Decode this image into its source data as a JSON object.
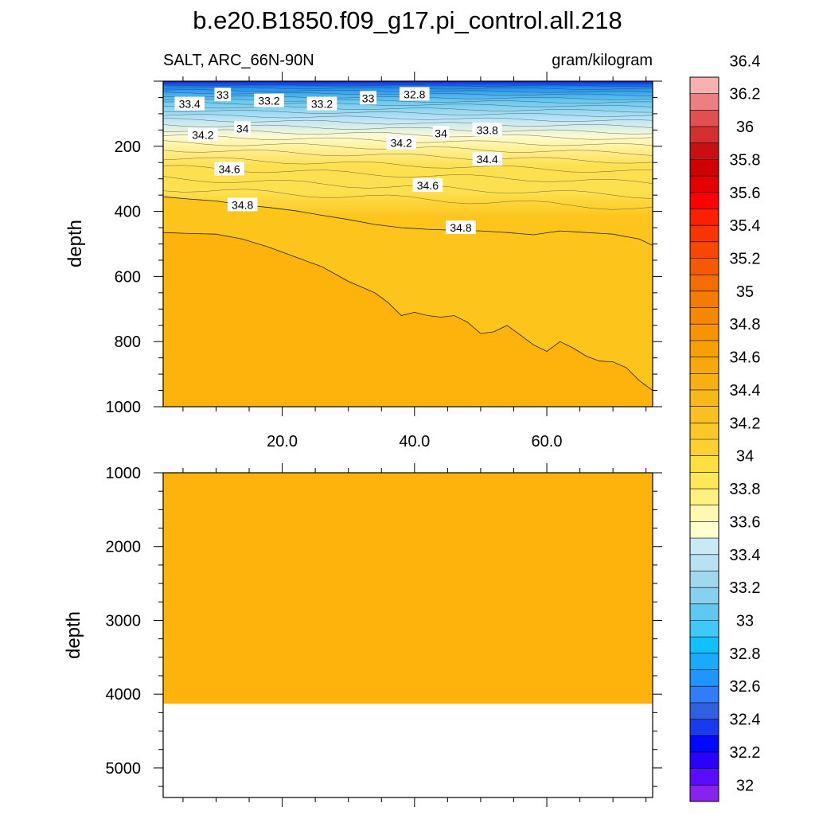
{
  "chart_data": {
    "type": "contour",
    "title": "b.e20.B1850.f09_g17.pi_control.all.218",
    "left_subtitle": "SALT, ARC_66N-90N",
    "right_subtitle": "gram/kilogram",
    "xlim": [
      2,
      76
    ],
    "x_tick_labels": [
      {
        "value": 20,
        "label": "20.0"
      },
      {
        "value": 40,
        "label": "40.0"
      },
      {
        "value": 60,
        "label": "60.0"
      }
    ],
    "panels": [
      {
        "name": "upper",
        "ylabel": "depth",
        "ylim": [
          0,
          1000
        ],
        "y_ticks": [
          200,
          400,
          600,
          800,
          1000
        ],
        "y_tick_labels": [
          "200",
          "400",
          "600",
          "800",
          "1000"
        ],
        "contour_labels": [
          {
            "text": "33",
            "x": 11,
            "y": 42
          },
          {
            "text": "33.4",
            "x": 6,
            "y": 70
          },
          {
            "text": "33.2",
            "x": 18,
            "y": 60
          },
          {
            "text": "33.2",
            "x": 26,
            "y": 70
          },
          {
            "text": "33",
            "x": 33,
            "y": 52
          },
          {
            "text": "32.8",
            "x": 40,
            "y": 40
          },
          {
            "text": "34",
            "x": 14,
            "y": 145
          },
          {
            "text": "34.2",
            "x": 8,
            "y": 165
          },
          {
            "text": "34",
            "x": 44,
            "y": 160
          },
          {
            "text": "33.8",
            "x": 51,
            "y": 150
          },
          {
            "text": "34.2",
            "x": 38,
            "y": 190
          },
          {
            "text": "34.4",
            "x": 51,
            "y": 240
          },
          {
            "text": "34.6",
            "x": 12,
            "y": 270
          },
          {
            "text": "34.6",
            "x": 42,
            "y": 320
          },
          {
            "text": "34.8",
            "x": 14,
            "y": 380
          },
          {
            "text": "34.8",
            "x": 47,
            "y": 450
          }
        ],
        "contour_348_depth": {
          "x": [
            2,
            6,
            10,
            14,
            18,
            22,
            26,
            30,
            34,
            38,
            42,
            46,
            50,
            54,
            58,
            62,
            66,
            70,
            74,
            76
          ],
          "depth": [
            355,
            362,
            368,
            380,
            388,
            398,
            412,
            425,
            440,
            450,
            455,
            458,
            460,
            465,
            472,
            460,
            465,
            470,
            485,
            505
          ]
        },
        "contour_350_depth": {
          "x": [
            2,
            6,
            10,
            14,
            18,
            22,
            26,
            30,
            34,
            36,
            38,
            40,
            42,
            44,
            46,
            48,
            50,
            52,
            54,
            56,
            58,
            60,
            62,
            64,
            66,
            68,
            70,
            72,
            74,
            76
          ],
          "depth": [
            465,
            468,
            470,
            485,
            510,
            540,
            570,
            615,
            650,
            680,
            720,
            710,
            720,
            725,
            720,
            740,
            775,
            770,
            750,
            780,
            810,
            830,
            800,
            820,
            845,
            860,
            862,
            880,
            920,
            950
          ]
        }
      },
      {
        "name": "lower",
        "ylabel": "depth",
        "ylim": [
          1000,
          5400
        ],
        "y_ticks": [
          1000,
          2000,
          3000,
          4000,
          5000
        ],
        "y_tick_labels": [
          "1000",
          "2000",
          "3000",
          "4000",
          "5000"
        ],
        "fill_value": 35.0,
        "bottom_depth": 4130
      }
    ],
    "colorbar": {
      "levels": [
        32,
        32.2,
        32.4,
        32.6,
        32.8,
        33,
        33.2,
        33.4,
        33.6,
        33.8,
        34,
        34.2,
        34.4,
        34.6,
        34.8,
        35,
        35.2,
        35.4,
        35.6,
        35.8,
        36,
        36.2,
        36.4
      ],
      "tick_labels": [
        "32",
        "32.2",
        "32.4",
        "32.6",
        "32.8",
        "33",
        "33.2",
        "33.4",
        "33.6",
        "33.8",
        "34",
        "34.2",
        "34.4",
        "34.6",
        "34.8",
        "35",
        "35.2",
        "35.4",
        "35.6",
        "35.8",
        "36",
        "36.2",
        "36.4"
      ],
      "colors": [
        "#8822ee",
        "#5a0cff",
        "#2a00ff",
        "#0008ff",
        "#1a3aee",
        "#3060e0",
        "#2f7df8",
        "#2094ff",
        "#18aaff",
        "#12c0ff",
        "#40c8f8",
        "#60c8f0",
        "#88d0f0",
        "#a0d8f0",
        "#b8e2f2",
        "#c8eaf6",
        "#ffffd0",
        "#fff8b0",
        "#fff080",
        "#ffe858",
        "#fde040",
        "#fbd030",
        "#fac828",
        "#f8c020",
        "#f8b818",
        "#f8b010",
        "#f8a808",
        "#f8a000",
        "#f79400",
        "#f68800",
        "#f67c00",
        "#f56c00",
        "#f55a00",
        "#f64800",
        "#f83400",
        "#fa2000",
        "#ff0000",
        "#e40000",
        "#d00000",
        "#c81010",
        "#d43030",
        "#e05050",
        "#ec8080",
        "#f8b0b0"
      ],
      "colors_note": "bottom to top"
    },
    "field_colors": {
      "deep": "#fdb30b",
      "mid": "#fdc51c",
      "upper": "#fde050",
      "light": "#fff3a0",
      "pale": "#fffad0",
      "cyan_light": "#bfe6f5",
      "cyan": "#66c8f0",
      "blue": "#1f8ff0",
      "deep_blue": "#1020e0"
    }
  }
}
